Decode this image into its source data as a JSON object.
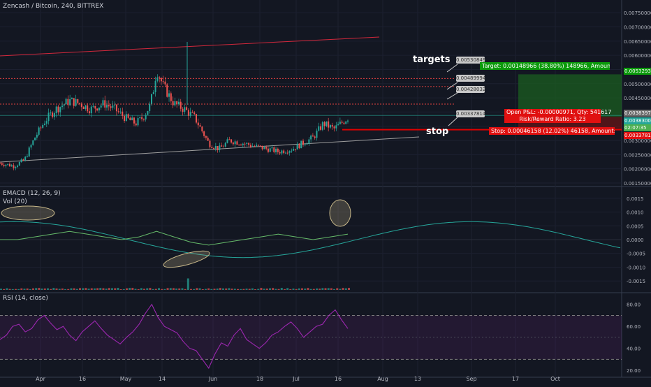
{
  "header": {
    "title": "Zencash / Bitcoin, 240, BITTREX"
  },
  "panes": {
    "macd_label": "EMACD (12, 26, 9)",
    "vol_label": "Vol (20)",
    "rsi_label": "RSI (14, close)"
  },
  "annotations": {
    "targets": "targets",
    "stop": "stop",
    "flag_1": "0.00530849",
    "flag_2": "0.00489994",
    "flag_3": "0.00428032",
    "flag_4": "0.00337814"
  },
  "position": {
    "target_text": "Target: 0.00148966 (38.80%) 148966, Amount: 1806.83",
    "open_text": "Open P&L: -0.00000971, Qty: 541617",
    "rr_text": "Risk/Reward Ratio: 3.23",
    "stop_text": "Stop: 0.00046158 (12.02%) 46158, Amount: 750"
  },
  "price_badges": {
    "target": "0.00532938",
    "upper": "0.00383972",
    "entry": "0.00383001",
    "current": "02:07:35",
    "stop": "0.00337814"
  },
  "colors": {
    "background": "#131722",
    "candle_up": "#26a69a",
    "candle_down": "#ef5350",
    "target_green": "#00a000",
    "stop_red": "#e00000",
    "rsi_purple": "#9c27b0",
    "trendline_red": "#d2283c",
    "ema_teal": "#26a69a"
  },
  "chart_data": [
    {
      "type": "candlestick",
      "pane": "price",
      "ylim": [
        0.0014,
        0.0079
      ],
      "y_ticks": [
        "0.00750000",
        "0.00700000",
        "0.00650000",
        "0.00600000",
        "0.00550000",
        "0.00500000",
        "0.00450000",
        "0.00400000",
        "0.00350000",
        "0.00300000",
        "0.00250000",
        "0.00200000",
        "0.00150000"
      ],
      "y_tick_values": [
        0.0075,
        0.007,
        0.0065,
        0.006,
        0.0055,
        0.005,
        0.0045,
        0.004,
        0.0035,
        0.003,
        0.0025,
        0.002,
        0.0015
      ],
      "x_ticks": [
        "Apr",
        "16",
        "May",
        "14",
        "Jun",
        "18",
        "Jul",
        "16",
        "Aug",
        "13",
        "Sep",
        "17",
        "Oct"
      ],
      "close_path": [
        [
          0,
          0.0022
        ],
        [
          0.04,
          0.0021
        ],
        [
          0.07,
          0.0023
        ],
        [
          0.1,
          0.0031
        ],
        [
          0.13,
          0.0037
        ],
        [
          0.16,
          0.0041
        ],
        [
          0.2,
          0.0044
        ],
        [
          0.23,
          0.0043
        ],
        [
          0.26,
          0.0041
        ],
        [
          0.3,
          0.0043
        ],
        [
          0.33,
          0.0041
        ],
        [
          0.36,
          0.0038
        ],
        [
          0.39,
          0.0036
        ],
        [
          0.41,
          0.0038
        ],
        [
          0.43,
          0.0042
        ],
        [
          0.44,
          0.0047
        ],
        [
          0.45,
          0.0055
        ],
        [
          0.47,
          0.0049
        ],
        [
          0.5,
          0.0043
        ],
        [
          0.53,
          0.0041
        ],
        [
          0.56,
          0.0038
        ],
        [
          0.6,
          0.0029
        ],
        [
          0.63,
          0.0027
        ],
        [
          0.66,
          0.003
        ],
        [
          0.7,
          0.0029
        ],
        [
          0.73,
          0.0028
        ],
        [
          0.77,
          0.0027
        ],
        [
          0.8,
          0.0026
        ],
        [
          0.84,
          0.0027
        ],
        [
          0.87,
          0.0029
        ],
        [
          0.9,
          0.0031
        ],
        [
          0.93,
          0.0036
        ],
        [
          0.96,
          0.0034
        ],
        [
          1.0,
          0.0038
        ]
      ],
      "levels": {
        "target": 0.00532938,
        "level_2": 0.00489994,
        "level_3": 0.00428032,
        "entry": 0.00383001,
        "stop": 0.00337814
      },
      "trendline_top": [
        [
          0.0065,
          0.0062
        ],
        [
          0.0066,
          0.0064
        ]
      ],
      "trendline_bottom": [
        [
          0.0021,
          0.002
        ],
        [
          0.0029,
          0.003
        ]
      ]
    },
    {
      "type": "line",
      "pane": "macd",
      "ylim": [
        -0.0019,
        0.0019
      ],
      "y_ticks": [
        "0.0015",
        "0.0010",
        "0.0005",
        "0.0000",
        "-0.0005",
        "-0.0010",
        "-0.0015"
      ],
      "y_tick_values": [
        0.0015,
        0.001,
        0.0005,
        0,
        -0.0005,
        -0.001,
        -0.0015
      ],
      "series": [
        {
          "role": "ema_wave",
          "amplitude": 0.00065,
          "values_note": ""
        },
        {
          "role": "macd_line",
          "values": [
            0.0,
            0.0,
            0.0001,
            0.0002,
            0.0003,
            0.0002,
            0.0001,
            0.0,
            0.0001,
            0.0003,
            0.0001,
            -0.0001,
            -0.0002,
            -0.0001,
            0.0,
            0.0001,
            0.0002,
            0.0001,
            0.0,
            0.0001,
            0.0002
          ]
        }
      ]
    },
    {
      "type": "line",
      "pane": "rsi",
      "ylim": [
        15,
        90
      ],
      "y_ticks": [
        "80.00",
        "60.00",
        "40.00",
        "20.00"
      ],
      "y_tick_values": [
        80,
        60,
        40,
        20
      ],
      "bands": [
        70,
        30
      ],
      "values": [
        48,
        52,
        60,
        62,
        55,
        58,
        66,
        70,
        63,
        57,
        60,
        52,
        47,
        55,
        60,
        65,
        58,
        52,
        48,
        44,
        50,
        55,
        62,
        72,
        80,
        68,
        60,
        57,
        54,
        46,
        40,
        38,
        30,
        22,
        35,
        45,
        42,
        52,
        58,
        48,
        44,
        40,
        45,
        52,
        55,
        60,
        64,
        58,
        50,
        55,
        60,
        62,
        70,
        75,
        66,
        58
      ]
    }
  ]
}
